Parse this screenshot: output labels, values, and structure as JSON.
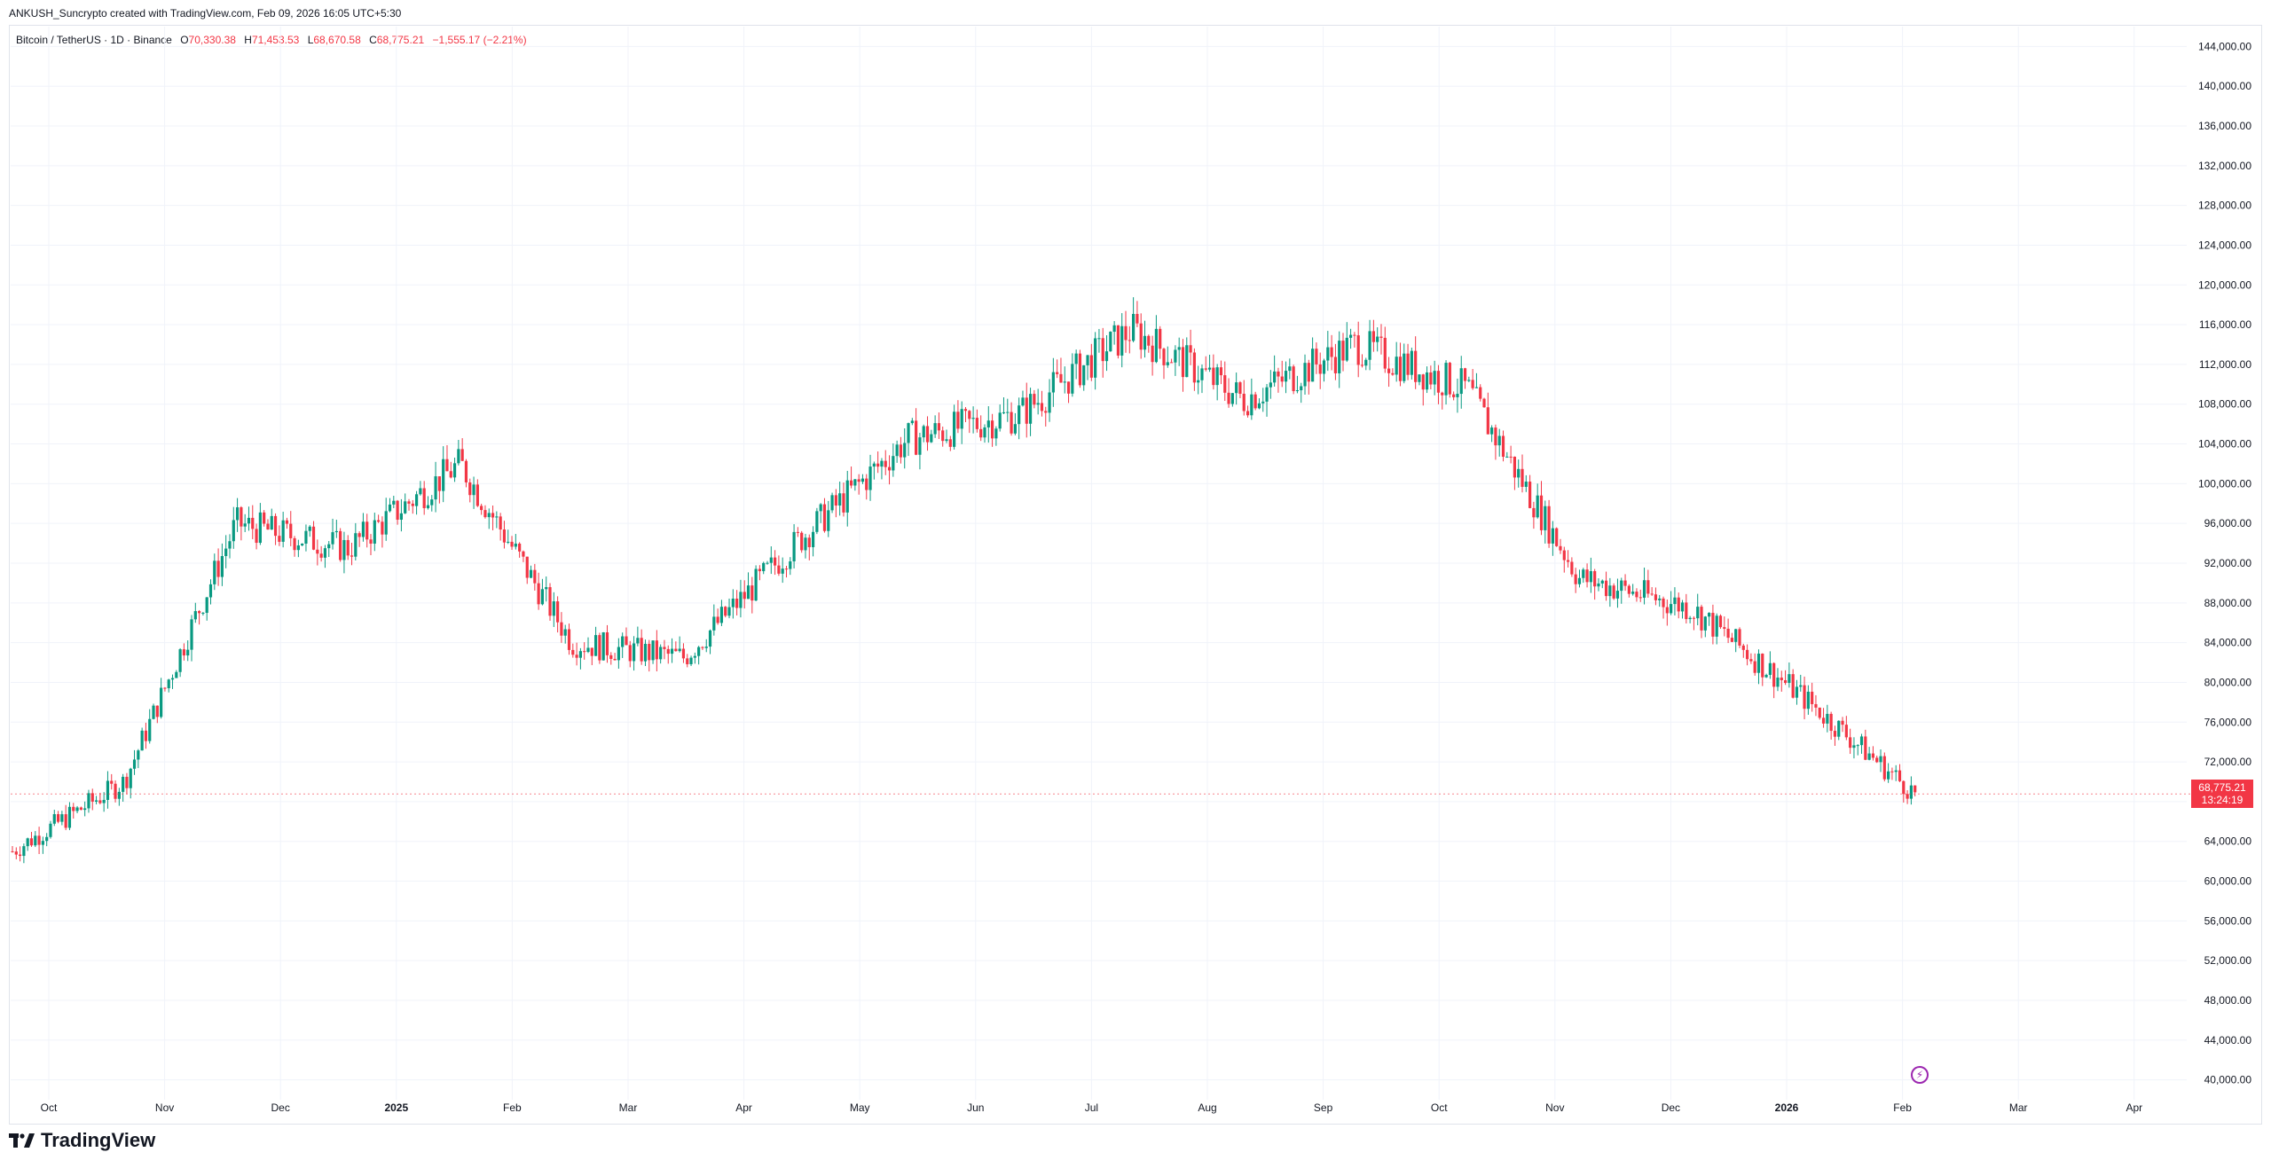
{
  "caption": "ANKUSH_Suncrypto created with TradingView.com, Feb 09, 2026 16:05 UTC+5:30",
  "legend": {
    "symbol": "Bitcoin / TetherUS · 1D · Binance",
    "open_label": "O",
    "open": "70,330.38",
    "high_label": "H",
    "high": "71,453.53",
    "low_label": "L",
    "low": "68,670.58",
    "close_label": "C",
    "close": "68,775.21",
    "change": "−1,555.17 (−2.21%)"
  },
  "last_price": {
    "value": "68,775.21",
    "countdown": "13:24:19"
  },
  "brand": "TradingView",
  "colors": {
    "up": "#089981",
    "down": "#f23645",
    "grid": "#f0f3fa",
    "accent": "#9c27b0"
  },
  "chart_data": {
    "type": "candlestick",
    "y_axis": {
      "ylim": [
        38000,
        146000
      ],
      "tick_labels": [
        "144,000.00",
        "140,000.00",
        "136,000.00",
        "132,000.00",
        "128,000.00",
        "124,000.00",
        "120,000.00",
        "116,000.00",
        "112,000.00",
        "108,000.00",
        "104,000.00",
        "100,000.00",
        "96,000.00",
        "92,000.00",
        "88,000.00",
        "84,000.00",
        "80,000.00",
        "76,000.00",
        "72,000.00",
        "68,000.00",
        "64,000.00",
        "60,000.00",
        "56,000.00",
        "52,000.00",
        "48,000.00",
        "44,000.00",
        "40,000.00"
      ]
    },
    "x_axis": {
      "tick_labels": [
        "Oct",
        "Nov",
        "Dec",
        "2025",
        "Feb",
        "Mar",
        "Apr",
        "May",
        "Jun",
        "Jul",
        "Aug",
        "Sep",
        "Oct",
        "Nov",
        "Dec",
        "2026",
        "Feb",
        "Mar",
        "Apr"
      ]
    },
    "series": [
      {
        "month": "Sep 2024",
        "close": 63000
      },
      {
        "month": "Oct 2024",
        "close": 70000
      },
      {
        "month": "Nov 2024",
        "close": 96000
      },
      {
        "month": "Dec 2024",
        "close": 93500
      },
      {
        "month": "Jan 2025",
        "close": 102000
      },
      {
        "month": "Feb 2025",
        "close": 84000
      },
      {
        "month": "Mar 2025",
        "close": 82500
      },
      {
        "month": "Apr 2025",
        "close": 94000
      },
      {
        "month": "May 2025",
        "close": 104500
      },
      {
        "month": "Jun 2025",
        "close": 107000
      },
      {
        "month": "Jul 2025",
        "close": 115500
      },
      {
        "month": "Aug 2025",
        "close": 108500
      },
      {
        "month": "Sep 2025",
        "close": 114000
      },
      {
        "month": "Oct 2025",
        "close": 109500
      },
      {
        "month": "Nov 2025",
        "close": 90500
      },
      {
        "month": "Dec 2025",
        "close": 87500
      },
      {
        "month": "Jan 2026",
        "close": 78500
      },
      {
        "month": "Feb 2026",
        "close": 68775.21
      }
    ],
    "last_close": 68775.21,
    "period_low": 60000,
    "period_high": 126000
  }
}
